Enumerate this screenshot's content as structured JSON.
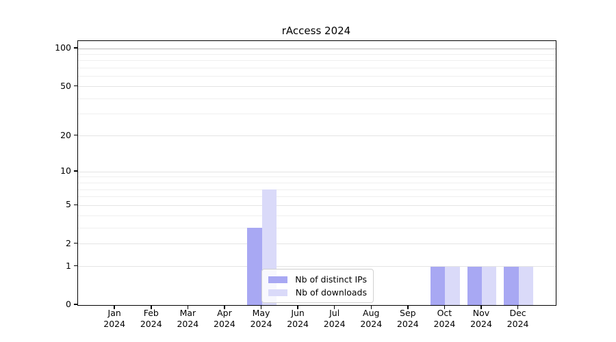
{
  "title": "rAccess 2024",
  "chart_data": {
    "type": "bar",
    "title": "rAccess 2024",
    "categories": [
      "Jan 2024",
      "Feb 2024",
      "Mar 2024",
      "Apr 2024",
      "May 2024",
      "Jun 2024",
      "Jul 2024",
      "Aug 2024",
      "Sep 2024",
      "Oct 2024",
      "Nov 2024",
      "Dec 2024"
    ],
    "series": [
      {
        "name": "Nb of distinct IPs",
        "color": "#a8a8f3",
        "values": [
          0,
          0,
          0,
          0,
          3,
          0,
          0,
          0,
          0,
          1,
          1,
          1
        ]
      },
      {
        "name": "Nb of downloads",
        "color": "#dadaf9",
        "values": [
          0,
          0,
          0,
          0,
          7,
          0,
          0,
          0,
          0,
          1,
          1,
          1
        ]
      }
    ],
    "xlabel": "",
    "ylabel": "",
    "y_axis": {
      "scale": "log1p",
      "ticks": [
        0,
        1,
        2,
        5,
        10,
        20,
        50,
        100
      ],
      "minor_gridlines": [
        3,
        4,
        6,
        7,
        8,
        9,
        30,
        40,
        60,
        70,
        80,
        90
      ],
      "range": [
        0,
        115
      ]
    },
    "grid": "horizontal",
    "legend": {
      "position": "lower-center-left-inside",
      "entries": [
        "Nb of distinct IPs",
        "Nb of downloads"
      ]
    },
    "colors": {
      "grid_minor": "#efefef",
      "grid_major": "#e4e4e4",
      "grid_top_line": "#b9b9b9",
      "axis": "#000000",
      "background": "#ffffff"
    }
  }
}
